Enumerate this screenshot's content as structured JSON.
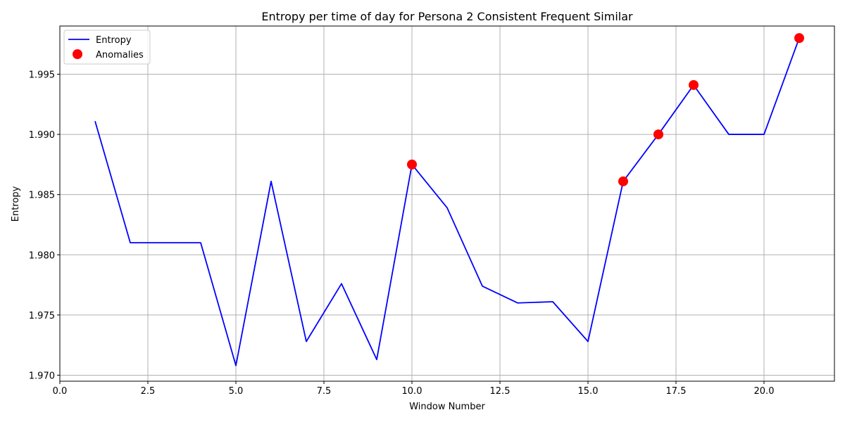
{
  "chart_data": {
    "type": "line",
    "title": "Entropy per time of day for Persona 2 Consistent Frequent Similar",
    "xlabel": "Window Number",
    "ylabel": "Entropy",
    "xlim": [
      0,
      22
    ],
    "ylim": [
      1.9695,
      1.999
    ],
    "x_ticks": [
      0,
      2.5,
      5,
      7.5,
      10,
      12.5,
      15,
      17.5,
      20
    ],
    "x_tick_labels": [
      "0.0",
      "2.5",
      "5.0",
      "7.5",
      "10.0",
      "12.5",
      "15.0",
      "17.5",
      "20.0"
    ],
    "y_ticks": [
      1.97,
      1.975,
      1.98,
      1.985,
      1.99,
      1.995
    ],
    "y_tick_labels": [
      "1.970",
      "1.975",
      "1.980",
      "1.985",
      "1.990",
      "1.995"
    ],
    "grid": true,
    "legend_position": "top-left",
    "series": [
      {
        "name": "Entropy",
        "kind": "line",
        "color": "#0000ff",
        "x": [
          1,
          2,
          3,
          4,
          5,
          6,
          7,
          8,
          9,
          10,
          11,
          12,
          13,
          14,
          15,
          16,
          17,
          18,
          19,
          20,
          21
        ],
        "y": [
          1.9911,
          1.981,
          1.981,
          1.981,
          1.9708,
          1.9861,
          1.9728,
          1.9776,
          1.9713,
          1.9875,
          1.9839,
          1.9774,
          1.976,
          1.9761,
          1.9728,
          1.9861,
          1.99,
          1.9941,
          1.99,
          1.99,
          1.998
        ]
      },
      {
        "name": "Anomalies",
        "kind": "scatter",
        "color": "#ff0000",
        "x": [
          10,
          16,
          17,
          18,
          21
        ],
        "y": [
          1.9875,
          1.9861,
          1.99,
          1.9941,
          1.998
        ]
      }
    ]
  }
}
